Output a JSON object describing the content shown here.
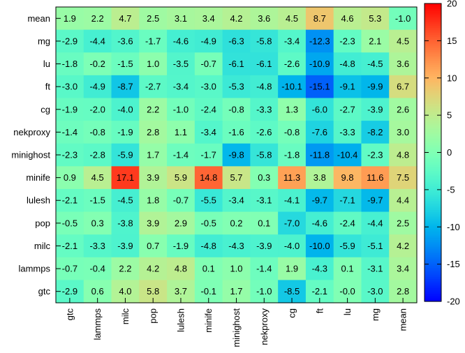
{
  "chart_data": {
    "type": "heatmap",
    "x_categories": [
      "gtc",
      "lammps",
      "milc",
      "pop",
      "lulesh",
      "minife",
      "minighost",
      "nekproxy",
      "cg",
      "ft",
      "lu",
      "mg",
      "mean"
    ],
    "y_categories": [
      "mean",
      "mg",
      "lu",
      "ft",
      "cg",
      "nekproxy",
      "minighost",
      "minife",
      "lulesh",
      "pop",
      "milc",
      "lammps",
      "gtc"
    ],
    "values": [
      [
        1.9,
        2.2,
        4.7,
        2.5,
        3.1,
        3.4,
        4.2,
        3.6,
        4.5,
        8.7,
        4.6,
        5.3,
        -1.0
      ],
      [
        -2.9,
        -4.4,
        -3.6,
        -1.7,
        -4.6,
        -4.9,
        -6.3,
        -5.8,
        -3.4,
        -12.3,
        -2.3,
        2.1,
        4.5
      ],
      [
        -1.8,
        -0.2,
        -1.5,
        1.0,
        -3.5,
        -0.7,
        -6.1,
        -6.1,
        -2.6,
        -10.9,
        -4.8,
        -4.5,
        3.6
      ],
      [
        -3.0,
        -4.9,
        -8.7,
        -2.7,
        -3.4,
        -3.0,
        -5.3,
        -4.8,
        -10.1,
        -15.1,
        -9.1,
        -9.9,
        6.7
      ],
      [
        -1.9,
        -2.0,
        -4.0,
        2.2,
        -1.0,
        -2.4,
        -0.8,
        -3.3,
        1.3,
        -6.0,
        -2.7,
        -3.9,
        2.6
      ],
      [
        -1.4,
        -0.8,
        -1.9,
        2.8,
        1.1,
        -3.4,
        -1.6,
        -2.6,
        -0.8,
        -7.6,
        -3.3,
        -8.2,
        3.0
      ],
      [
        -2.3,
        -2.8,
        -5.9,
        1.7,
        -1.4,
        -1.7,
        -9.8,
        -5.8,
        -1.8,
        -11.8,
        -10.4,
        -2.3,
        4.8
      ],
      [
        0.9,
        4.5,
        17.1,
        3.9,
        5.9,
        14.8,
        5.7,
        0.3,
        11.3,
        3.8,
        9.8,
        11.6,
        7.5
      ],
      [
        -2.1,
        -1.5,
        -4.5,
        1.8,
        -0.7,
        -5.5,
        -3.4,
        -3.1,
        -4.1,
        -9.7,
        -7.1,
        -9.7,
        4.4
      ],
      [
        -0.5,
        0.3,
        -3.8,
        3.9,
        2.9,
        -0.5,
        0.2,
        0.1,
        -7.0,
        -4.6,
        -2.4,
        -4.4,
        2.5
      ],
      [
        -2.1,
        -3.3,
        -3.9,
        0.7,
        -1.9,
        -4.8,
        -4.3,
        -3.9,
        -4.0,
        -10.0,
        -5.9,
        -5.1,
        4.2
      ],
      [
        -0.7,
        -0.4,
        2.2,
        4.2,
        4.8,
        0.1,
        1.0,
        -1.4,
        1.9,
        -4.3,
        0.1,
        -3.1,
        3.4
      ],
      [
        -2.9,
        0.6,
        4.0,
        5.8,
        3.7,
        -0.1,
        1.7,
        -1.0,
        -8.5,
        -2.1,
        -0.0,
        -3.0,
        2.8
      ]
    ],
    "colorbar": {
      "range": [
        -20,
        20
      ],
      "ticks": [
        20,
        15,
        10,
        5,
        0,
        -5,
        -10,
        -15,
        -20
      ],
      "colormap": "rainbow"
    }
  }
}
